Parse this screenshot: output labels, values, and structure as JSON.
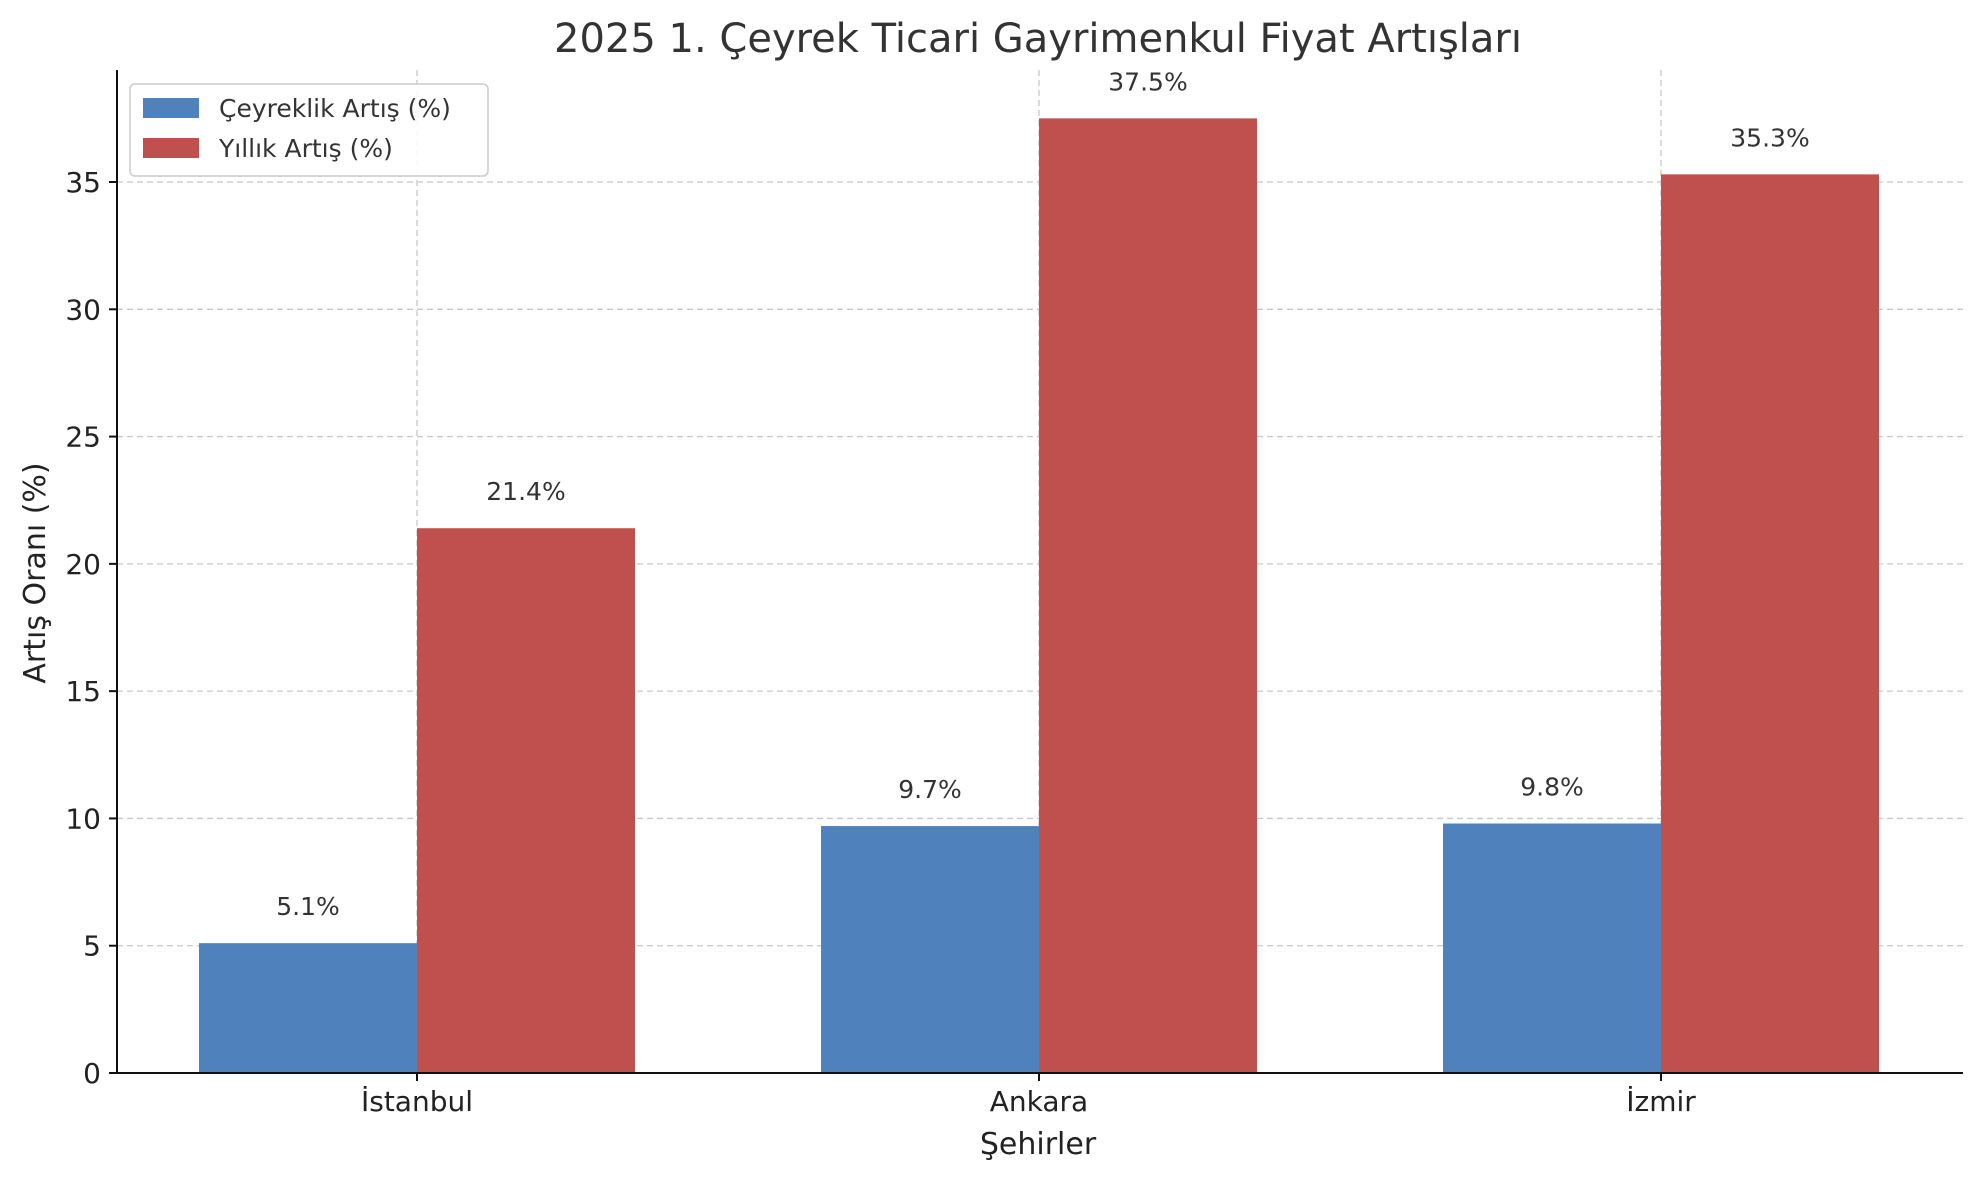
{
  "chart_data": {
    "type": "bar",
    "title": "2025 1. Çeyrek Ticari Gayrimenkul Fiyat Artışları",
    "xlabel": "Şehirler",
    "ylabel": "Artış Oranı (%)",
    "categories": [
      "İstanbul",
      "Ankara",
      "İzmir"
    ],
    "series": [
      {
        "name": "Çeyreklik Artış (%)",
        "values": [
          5.1,
          9.7,
          9.8
        ],
        "color": "#4f81bd",
        "labels": [
          "5.1%",
          "9.7%",
          "9.8%"
        ]
      },
      {
        "name": "Yıllık Artış (%)",
        "values": [
          21.4,
          37.5,
          35.3
        ],
        "color": "#c0504d",
        "labels": [
          "21.4%",
          "37.5%",
          "35.3%"
        ]
      }
    ],
    "ylim": [
      0,
      39.4
    ],
    "yticks": [
      0,
      5,
      10,
      15,
      20,
      25,
      30,
      35
    ],
    "ytick_labels": [
      "0",
      "5",
      "10",
      "15",
      "20",
      "25",
      "30",
      "35"
    ],
    "grid": true,
    "legend_position": "top-left"
  }
}
